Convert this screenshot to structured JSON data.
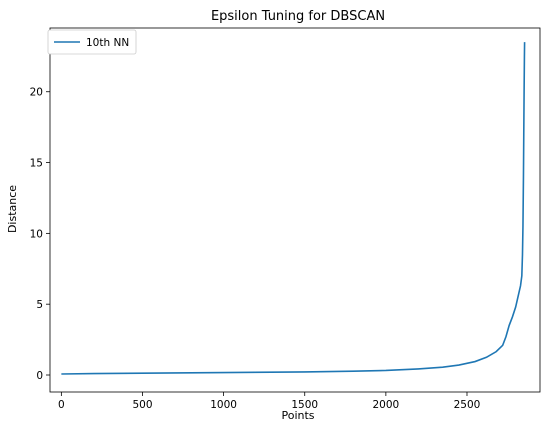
{
  "chart_data": {
    "type": "line",
    "title": "Epsilon Tuning for DBSCAN",
    "xlabel": "Points",
    "ylabel": "Distance",
    "xlim": [
      -70,
      2950
    ],
    "ylim": [
      -1.2,
      24.5
    ],
    "xticks": [
      0,
      500,
      1000,
      1500,
      2000,
      2500
    ],
    "yticks": [
      0,
      5,
      10,
      15,
      20
    ],
    "grid": false,
    "legend_position": "top-left",
    "series": [
      {
        "name": "10th NN",
        "color": "#1f77b4",
        "x": [
          0,
          200,
          500,
          1000,
          1500,
          1800,
          2000,
          2200,
          2350,
          2450,
          2550,
          2620,
          2680,
          2720,
          2740,
          2760,
          2780,
          2800,
          2810,
          2820,
          2830,
          2838,
          2842,
          2845,
          2848,
          2850,
          2852,
          2854,
          2855
        ],
        "values": [
          0.07,
          0.1,
          0.13,
          0.17,
          0.22,
          0.27,
          0.32,
          0.43,
          0.55,
          0.7,
          0.95,
          1.25,
          1.65,
          2.1,
          2.7,
          3.5,
          4.1,
          4.8,
          5.3,
          5.8,
          6.3,
          7.0,
          8.5,
          10.5,
          14.0,
          17.0,
          20.0,
          22.5,
          23.5
        ]
      }
    ]
  }
}
